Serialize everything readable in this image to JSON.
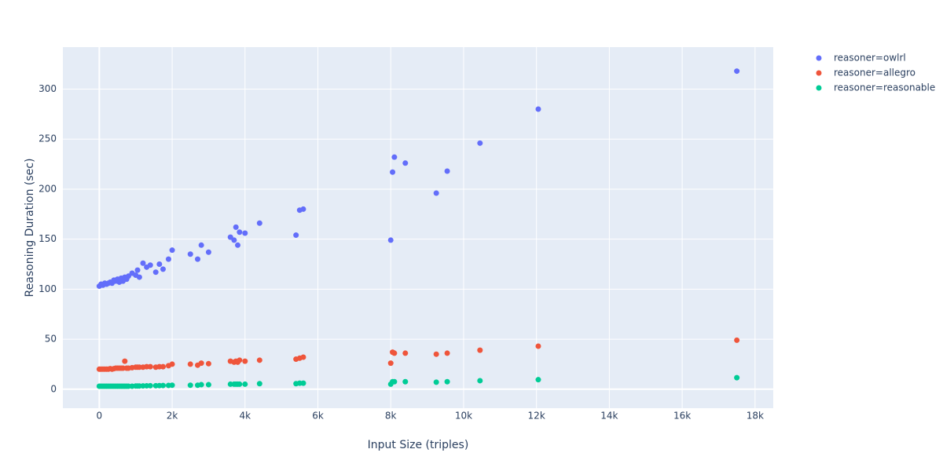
{
  "chart_data": {
    "type": "scatter",
    "x_label": "Input Size (triples)",
    "y_label": "Reasoning Duration (sec)",
    "x": [
      0,
      50,
      100,
      150,
      200,
      250,
      300,
      350,
      400,
      450,
      500,
      550,
      600,
      650,
      700,
      750,
      800,
      900,
      1000,
      1050,
      1100,
      1200,
      1300,
      1400,
      1550,
      1650,
      1750,
      1900,
      2000,
      2500,
      2700,
      2800,
      3000,
      3600,
      3700,
      3750,
      3800,
      3850,
      4000,
      4400,
      5400,
      5500,
      5600,
      8000,
      8050,
      8100,
      8400,
      9250,
      9550,
      10450,
      12050,
      17500
    ],
    "series": [
      {
        "name": "reasoner=owlrl",
        "color": "#636efa",
        "values": [
          103,
          105,
          104,
          106,
          105,
          106,
          107,
          106,
          109,
          108,
          110,
          107,
          111,
          108,
          112,
          110,
          113,
          116,
          114,
          119,
          112,
          126,
          122,
          124,
          117,
          125,
          120,
          130,
          139,
          135,
          130,
          144,
          137,
          152,
          149,
          162,
          144,
          157,
          156,
          166,
          154,
          179,
          180,
          149,
          217,
          232,
          226,
          196,
          218,
          246,
          280,
          318
        ]
      },
      {
        "name": "reasoner=allegro",
        "color": "#EF553B",
        "values": [
          20,
          20,
          20,
          20,
          20,
          20,
          20.5,
          20,
          20.5,
          21,
          21,
          21,
          21,
          21,
          28,
          21,
          21,
          21.5,
          22,
          22,
          22,
          22,
          22.5,
          22.5,
          22,
          22.5,
          22.5,
          23.5,
          25,
          25,
          24,
          26,
          25.5,
          28,
          27,
          28,
          27,
          29,
          28,
          29,
          30,
          31,
          32,
          26,
          37,
          36,
          36,
          35,
          36,
          39,
          43,
          49
        ]
      },
      {
        "name": "reasoner=reasonable",
        "color": "#00cc96",
        "values": [
          3,
          3,
          3,
          3,
          3,
          3,
          3,
          3,
          3,
          3,
          3,
          3,
          3,
          3,
          3,
          3,
          3,
          3,
          3.2,
          3.2,
          3.2,
          3.3,
          3.4,
          3.5,
          3.5,
          3.6,
          3.7,
          3.8,
          4,
          4,
          4,
          4.5,
          4.5,
          5,
          5,
          5,
          5,
          5,
          5,
          5.5,
          5.5,
          6,
          6,
          5,
          7.5,
          7.5,
          7.5,
          7,
          7.5,
          8.5,
          9.5,
          11.5
        ]
      }
    ],
    "xlim": [
      -1000,
      18500
    ],
    "xticks": [
      0,
      {
        "value": 2000,
        "label": "2k"
      },
      {
        "value": 4000,
        "label": "4k"
      },
      {
        "value": 6000,
        "label": "6k"
      },
      {
        "value": 8000,
        "label": "8k"
      },
      {
        "value": 10000,
        "label": "10k"
      },
      {
        "value": 12000,
        "label": "12k"
      },
      {
        "value": 14000,
        "label": "14k"
      },
      {
        "value": 16000,
        "label": "16k"
      },
      {
        "value": 18000,
        "label": "18k"
      }
    ],
    "ylim": [
      -19,
      342
    ],
    "yticks": [
      0,
      50,
      100,
      150,
      200,
      250,
      300
    ],
    "grid": true,
    "legend": "right"
  }
}
